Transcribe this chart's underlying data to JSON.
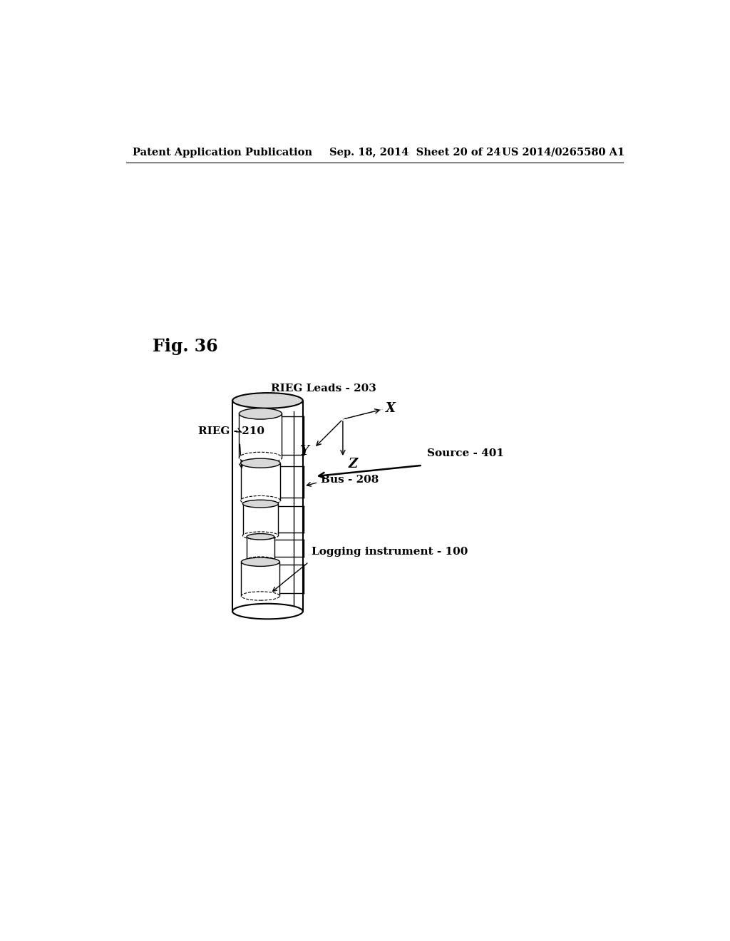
{
  "bg_color": "#ffffff",
  "header_left": "Patent Application Publication",
  "header_mid": "Sep. 18, 2014  Sheet 20 of 24",
  "header_right": "US 2014/0265580 A1",
  "fig_label": "Fig. 36",
  "label_rieg_leads": "RIEG Leads - 203",
  "label_rieg": "RIEG - 210",
  "label_bus": "Bus - 208",
  "label_source": "Source - 401",
  "label_logging": "Logging instrument - 100",
  "label_x": "X",
  "label_y": "Y",
  "label_z": "Z",
  "line_color": "#000000",
  "fill_color": "#ffffff",
  "light_gray": "#d8d8d8",
  "mid_gray": "#b0b0b0"
}
